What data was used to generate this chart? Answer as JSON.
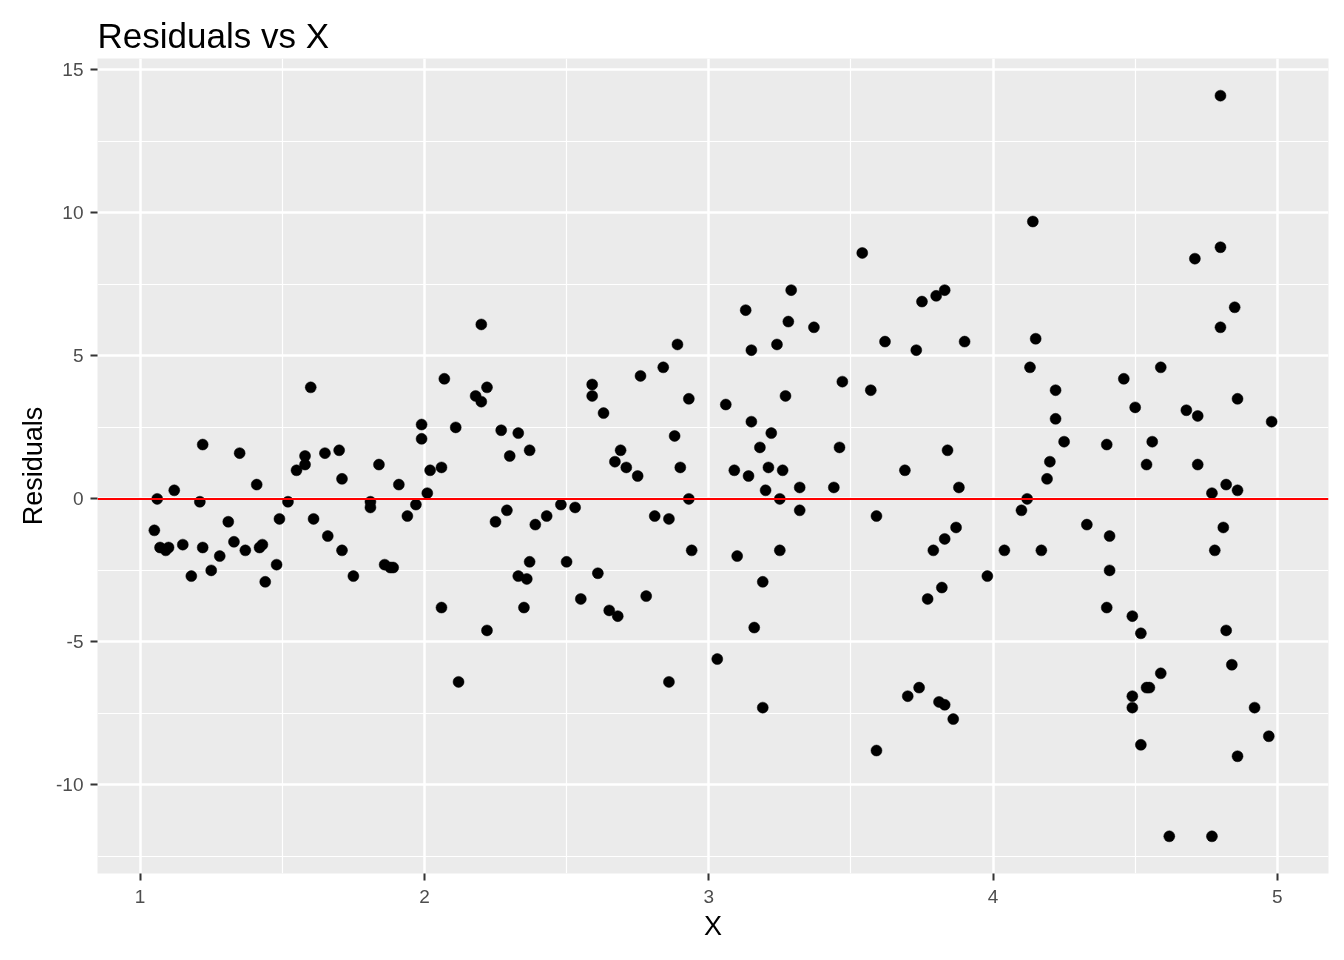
{
  "chart_data": {
    "type": "scatter",
    "title": "Residuals vs X",
    "xlabel": "X",
    "ylabel": "Residuals",
    "color": "#000000",
    "marker": "circle",
    "grid": true,
    "xlim": [
      0.85,
      5.18
    ],
    "ylim": [
      -13.1,
      15.4
    ],
    "xticks": [
      1,
      2,
      3,
      4,
      5
    ],
    "yticks": [
      -10,
      -5,
      0,
      5,
      10,
      15
    ],
    "ref_lines": [
      {
        "axis": "y",
        "value": 0,
        "color": "#ff0000"
      }
    ],
    "x": [
      1.05,
      1.06,
      1.07,
      1.09,
      1.1,
      1.12,
      1.15,
      1.18,
      1.21,
      1.22,
      1.22,
      1.25,
      1.28,
      1.31,
      1.33,
      1.35,
      1.37,
      1.41,
      1.42,
      1.43,
      1.44,
      1.48,
      1.49,
      1.52,
      1.55,
      1.58,
      1.58,
      1.6,
      1.61,
      1.65,
      1.66,
      1.7,
      1.71,
      1.71,
      1.75,
      1.81,
      1.81,
      1.84,
      1.86,
      1.88,
      1.89,
      1.91,
      1.94,
      1.97,
      1.99,
      1.99,
      2.01,
      2.02,
      2.06,
      2.06,
      2.07,
      2.11,
      2.12,
      2.18,
      2.2,
      2.2,
      2.22,
      2.22,
      2.25,
      2.27,
      2.29,
      2.3,
      2.33,
      2.33,
      2.36,
      2.35,
      2.37,
      2.37,
      2.39,
      2.43,
      2.48,
      2.5,
      2.53,
      2.55,
      2.59,
      2.59,
      2.61,
      2.63,
      2.65,
      2.68,
      2.67,
      2.69,
      2.71,
      2.75,
      2.76,
      2.78,
      2.81,
      2.84,
      2.86,
      2.86,
      2.88,
      2.89,
      2.9,
      2.93,
      2.93,
      2.94,
      3.03,
      3.06,
      3.09,
      3.1,
      3.13,
      3.14,
      3.15,
      3.15,
      3.16,
      3.18,
      3.19,
      3.19,
      3.2,
      3.21,
      3.22,
      3.24,
      3.25,
      3.25,
      3.26,
      3.27,
      3.28,
      3.29,
      3.32,
      3.32,
      3.37,
      3.44,
      3.46,
      3.47,
      3.54,
      3.57,
      3.59,
      3.59,
      3.62,
      3.69,
      3.7,
      3.73,
      3.74,
      3.75,
      3.77,
      3.79,
      3.8,
      3.81,
      3.82,
      3.83,
      3.83,
      3.83,
      3.84,
      3.86,
      3.87,
      3.88,
      3.9,
      3.98,
      4.04,
      4.1,
      4.12,
      4.14,
      4.13,
      4.15,
      4.17,
      4.19,
      4.2,
      4.22,
      4.22,
      4.25,
      4.33,
      4.4,
      4.41,
      4.41,
      4.4,
      4.46,
      4.49,
      4.49,
      4.49,
      4.5,
      4.52,
      4.52,
      4.54,
      4.54,
      4.55,
      4.56,
      4.59,
      4.59,
      4.62,
      4.68,
      4.71,
      4.72,
      4.72,
      4.77,
      4.77,
      4.78,
      4.8,
      4.8,
      4.8,
      4.81,
      4.82,
      4.82,
      4.84,
      4.85,
      4.86,
      4.86,
      4.86,
      4.92,
      4.97,
      4.98
    ],
    "values": [
      -1.1,
      0.0,
      -1.7,
      -1.8,
      -1.7,
      0.3,
      -1.6,
      -2.7,
      -0.1,
      1.9,
      -1.7,
      -2.5,
      -2.0,
      -0.8,
      -1.5,
      1.6,
      -1.8,
      0.5,
      -1.7,
      -1.6,
      -2.9,
      -2.3,
      -0.7,
      -0.1,
      1.0,
      1.5,
      1.2,
      3.9,
      -0.7,
      1.6,
      -1.3,
      1.7,
      0.7,
      -1.8,
      -2.7,
      -0.1,
      -0.3,
      1.2,
      -2.3,
      -2.4,
      -2.4,
      0.5,
      -0.6,
      -0.2,
      2.6,
      2.1,
      0.2,
      1.0,
      -3.8,
      1.1,
      4.2,
      2.5,
      -6.4,
      3.6,
      6.1,
      3.4,
      3.9,
      -4.6,
      -0.8,
      2.4,
      -0.4,
      1.5,
      2.3,
      -2.7,
      -2.8,
      -3.8,
      1.7,
      -2.2,
      -0.9,
      -0.6,
      -0.2,
      -2.2,
      -0.3,
      -3.5,
      4.0,
      3.6,
      -2.6,
      3.0,
      -3.9,
      -4.1,
      1.3,
      1.7,
      1.1,
      0.8,
      4.3,
      -3.4,
      -0.6,
      4.6,
      -0.7,
      -6.4,
      2.2,
      5.4,
      1.1,
      3.5,
      0.0,
      -1.8,
      -5.6,
      3.3,
      1.0,
      -2.0,
      6.6,
      0.8,
      2.7,
      5.2,
      -4.5,
      1.8,
      -2.9,
      -7.3,
      0.3,
      1.1,
      2.3,
      5.4,
      0.0,
      -1.8,
      1.0,
      3.6,
      6.2,
      7.3,
      0.4,
      -0.4,
      6.0,
      0.4,
      1.8,
      4.1,
      8.6,
      3.8,
      -0.6,
      -8.8,
      5.5,
      1.0,
      -6.9,
      5.2,
      -6.6,
      6.9,
      -3.5,
      -1.8,
      7.1,
      -7.1,
      -3.1,
      7.3,
      -7.2,
      -1.4,
      1.7,
      -7.7,
      -1.0,
      0.4,
      5.5,
      -2.7,
      -1.8,
      -0.4,
      0.0,
      9.7,
      4.6,
      5.6,
      -1.8,
      0.7,
      1.3,
      3.8,
      2.8,
      2.0,
      -0.9,
      1.9,
      -1.3,
      -2.5,
      -3.8,
      4.2,
      -4.1,
      -6.9,
      -7.3,
      3.2,
      -4.7,
      -8.6,
      1.2,
      -6.6,
      -6.6,
      2.0,
      4.6,
      -6.1,
      -11.8,
      3.1,
      8.4,
      2.9,
      1.2,
      0.2,
      -11.8,
      -1.8,
      6.0,
      8.8,
      14.1,
      -1.0,
      -4.6,
      0.5,
      -5.8,
      6.7,
      0.3,
      3.5,
      -9.0,
      -7.3,
      -8.3,
      2.7
    ]
  }
}
